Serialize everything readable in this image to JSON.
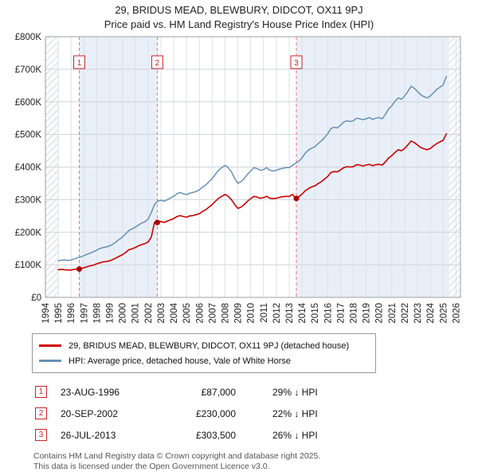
{
  "title": "29, BRIDUS MEAD, BLEWBURY, DIDCOT, OX11 9PJ",
  "subtitle": "Price paid vs. HM Land Registry's House Price Index (HPI)",
  "chart_data": {
    "type": "line",
    "title": "Price paid vs. HM Land Registry's House Price Index (HPI)",
    "xlabel": "",
    "ylabel": "",
    "xlim": [
      1994,
      2026.35
    ],
    "ylim": [
      0,
      800000
    ],
    "grid": true,
    "band_color": "#e9eff8",
    "y_ticks": [
      0,
      100000,
      200000,
      300000,
      400000,
      500000,
      600000,
      700000,
      800000
    ],
    "y_tick_labels": [
      "£0",
      "£100K",
      "£200K",
      "£300K",
      "£400K",
      "£500K",
      "£600K",
      "£700K",
      "£800K"
    ],
    "x_ticks": [
      1994,
      1995,
      1996,
      1997,
      1998,
      1999,
      2000,
      2001,
      2002,
      2003,
      2004,
      2005,
      2006,
      2007,
      2008,
      2009,
      2010,
      2011,
      2012,
      2013,
      2014,
      2015,
      2016,
      2017,
      2018,
      2019,
      2020,
      2021,
      2022,
      2023,
      2024,
      2025,
      2026
    ],
    "shaded_periods": [
      [
        1996.64,
        2002.72
      ],
      [
        2013.56,
        2025.45
      ]
    ],
    "hatched_periods": [
      [
        1994,
        1995.0
      ],
      [
        2025.45,
        2026.35
      ]
    ],
    "series": [
      {
        "name": "29, BRIDUS MEAD, BLEWBURY, DIDCOT, OX11 9PJ (detached house)",
        "color": "#cc0000",
        "width": 1.6,
        "start": 1995,
        "step": 0.25,
        "values": [
          85000,
          86000,
          85000,
          84000,
          84000,
          86000,
          87000,
          88000,
          91000,
          94000,
          97000,
          99000,
          103000,
          106000,
          109000,
          110000,
          112000,
          116000,
          121000,
          126000,
          131000,
          138000,
          146000,
          149000,
          153000,
          158000,
          162000,
          165000,
          170000,
          185000,
          230000,
          232000,
          233000,
          230000,
          234000,
          238000,
          242000,
          248000,
          251000,
          248000,
          246000,
          250000,
          251000,
          254000,
          257000,
          264000,
          269000,
          277000,
          285000,
          295000,
          304000,
          310000,
          316000,
          310000,
          300000,
          285000,
          273000,
          277000,
          285000,
          295000,
          303000,
          310000,
          308000,
          304000,
          306000,
          310000,
          304000,
          303000,
          304000,
          307000,
          309000,
          310000,
          310000,
          316000,
          303500,
          309000,
          317000,
          327000,
          334000,
          339000,
          342000,
          349000,
          355000,
          363000,
          371000,
          383000,
          386000,
          385000,
          391000,
          398000,
          401000,
          400000,
          401000,
          407000,
          406000,
          403000,
          406000,
          408000,
          404000,
          407000,
          408000,
          406000,
          416000,
          428000,
          435000,
          445000,
          453000,
          450000,
          457000,
          468000,
          480000,
          475000,
          468000,
          460000,
          456000,
          453000,
          457000,
          465000,
          472000,
          477000,
          482000,
          502000
        ]
      },
      {
        "name": "HPI: Average price, detached house, Vale of White Horse",
        "color": "#6691b5",
        "width": 1.5,
        "start": 1995,
        "step": 0.25,
        "values": [
          112000,
          114000,
          115000,
          113000,
          115000,
          118000,
          122000,
          124000,
          128000,
          132000,
          136000,
          140000,
          145000,
          150000,
          153000,
          155000,
          158000,
          163000,
          170000,
          178000,
          185000,
          195000,
          205000,
          210000,
          215000,
          222000,
          228000,
          232000,
          240000,
          260000,
          285000,
          295000,
          298000,
          295000,
          300000,
          305000,
          310000,
          318000,
          322000,
          318000,
          315000,
          320000,
          322000,
          325000,
          330000,
          338000,
          345000,
          355000,
          365000,
          378000,
          390000,
          398000,
          405000,
          398000,
          385000,
          365000,
          350000,
          355000,
          365000,
          378000,
          388000,
          398000,
          395000,
          390000,
          392000,
          398000,
          390000,
          388000,
          390000,
          394000,
          396000,
          398000,
          398000,
          405000,
          412000,
          418000,
          428000,
          442000,
          452000,
          458000,
          462000,
          472000,
          480000,
          490000,
          502000,
          518000,
          522000,
          520000,
          528000,
          538000,
          542000,
          540000,
          542000,
          550000,
          548000,
          545000,
          548000,
          552000,
          546000,
          550000,
          552000,
          548000,
          562000,
          578000,
          588000,
          602000,
          612000,
          608000,
          618000,
          632000,
          648000,
          642000,
          632000,
          622000,
          616000,
          612000,
          618000,
          628000,
          638000,
          645000,
          652000,
          678000
        ]
      }
    ],
    "sales": [
      {
        "n": 1,
        "x": 1996.64,
        "date": "23-AUG-1996",
        "price": 87000
      },
      {
        "n": 2,
        "x": 2002.72,
        "date": "20-SEP-2002",
        "price": 230000
      },
      {
        "n": 3,
        "x": 2013.56,
        "date": "26-JUL-2013",
        "price": 303500
      }
    ]
  },
  "transactions": [
    {
      "num": "1",
      "date": "23-AUG-1996",
      "price": "£87,000",
      "hpi": "29% ↓ HPI"
    },
    {
      "num": "2",
      "date": "20-SEP-2002",
      "price": "£230,000",
      "hpi": "22% ↓ HPI"
    },
    {
      "num": "3",
      "date": "26-JUL-2013",
      "price": "£303,500",
      "hpi": "26% ↓ HPI"
    }
  ],
  "footer": {
    "line1": "Contains HM Land Registry data © Crown copyright and database right 2025.",
    "line2": "This data is licensed under the Open Government Licence v3.0."
  }
}
